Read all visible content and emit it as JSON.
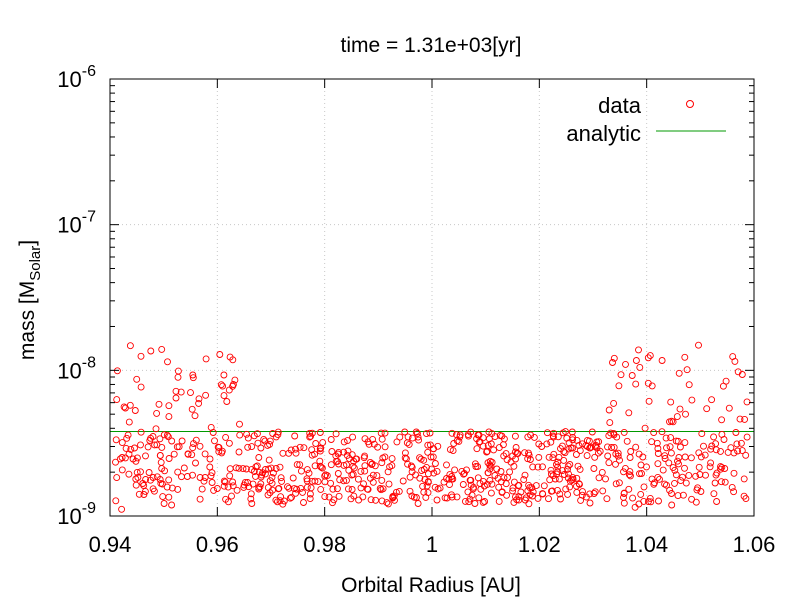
{
  "chart_data": {
    "type": "scatter",
    "title": "time = 1.31e+03[yr]",
    "xlabel": "Orbital Radius [AU]",
    "ylabel_main": "mass [M",
    "ylabel_sub": "Solar",
    "ylabel_end": "]",
    "xlim": [
      0.94,
      1.06
    ],
    "ylim": [
      1e-09,
      1e-06
    ],
    "yscale": "log",
    "grid": true,
    "legend_position": "top-right",
    "x_ticks": [
      0.94,
      0.96,
      0.98,
      1.0,
      1.02,
      1.04,
      1.06
    ],
    "x_tick_labels": [
      "0.94",
      "0.96",
      "0.98",
      "1",
      "1.02",
      "1.04",
      "1.06"
    ],
    "y_ticks": [
      1e-09,
      1e-08,
      1e-07,
      1e-06
    ],
    "y_tick_base": "10",
    "y_tick_exponents": [
      "-9",
      "-8",
      "-7",
      "-6"
    ],
    "series": [
      {
        "name": "data",
        "kind": "points",
        "marker": "open-circle",
        "color": "#ff0000",
        "generator": {
          "count": 900,
          "seed": 1310,
          "x_range": [
            0.941,
            1.059
          ],
          "band_mass_range": [
            1.2e-09,
            3.8e-09
          ],
          "inner_edge_upper_bound": 0.965,
          "outer_edge_lower_bound": 1.033,
          "edge_mass_range": [
            1.1e-09,
            1.5e-08
          ]
        }
      },
      {
        "name": "analytic",
        "kind": "line",
        "color": "#009900",
        "y": 3.8e-09
      }
    ],
    "legend": [
      {
        "label": "data",
        "series": 0
      },
      {
        "label": "analytic",
        "series": 1
      }
    ]
  }
}
